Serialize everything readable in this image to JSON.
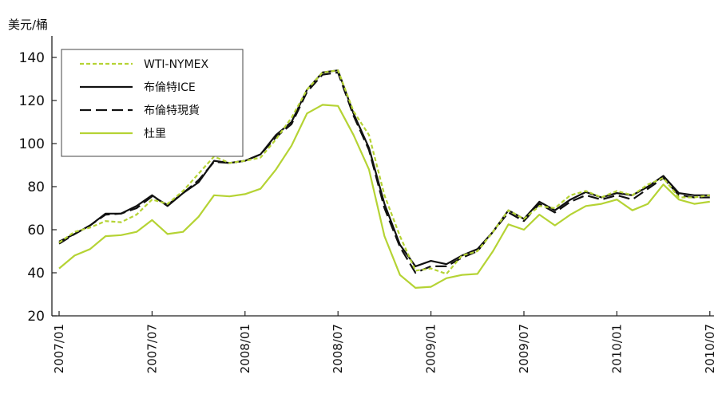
{
  "chart_data": {
    "type": "line",
    "ylabel": "美元/桶",
    "ylim": [
      20,
      150
    ],
    "yticks": [
      20,
      40,
      60,
      80,
      100,
      120,
      140
    ],
    "xtick_labels": [
      "2007/01",
      "2007/07",
      "2008/01",
      "2008/07",
      "2009/01",
      "2009/07",
      "2010/01",
      "2010/07"
    ],
    "xtick_index": [
      0,
      6,
      12,
      18,
      24,
      30,
      36,
      42
    ],
    "x": [
      "2007/01",
      "2007/02",
      "2007/03",
      "2007/04",
      "2007/05",
      "2007/06",
      "2007/07",
      "2007/08",
      "2007/09",
      "2007/10",
      "2007/11",
      "2007/12",
      "2008/01",
      "2008/02",
      "2008/03",
      "2008/04",
      "2008/05",
      "2008/06",
      "2008/07",
      "2008/08",
      "2008/09",
      "2008/10",
      "2008/11",
      "2008/12",
      "2009/01",
      "2009/02",
      "2009/03",
      "2009/04",
      "2009/05",
      "2009/06",
      "2009/07",
      "2009/08",
      "2009/09",
      "2009/10",
      "2009/11",
      "2009/12",
      "2010/01",
      "2010/02",
      "2010/03",
      "2010/04",
      "2010/05",
      "2010/06",
      "2010/07"
    ],
    "legend_position": "top-left",
    "grid": false,
    "series": [
      {
        "name": "WTI-NYMEX",
        "color": "#b5d334",
        "style": "dotted",
        "values": [
          54,
          59,
          61,
          64,
          63.5,
          67,
          74,
          72,
          78,
          86,
          94,
          91,
          92,
          93.5,
          102,
          112,
          125,
          133,
          134,
          115,
          104,
          76,
          57,
          41,
          42,
          39.5,
          48,
          50,
          59,
          69,
          65,
          71,
          70,
          76,
          78,
          75,
          78,
          76,
          81,
          84,
          75,
          75,
          76
        ]
      },
      {
        "name": "布倫特ICE",
        "color": "#111111",
        "style": "solid",
        "values": [
          54.5,
          58,
          62,
          67.5,
          67.5,
          71,
          76,
          71,
          77,
          82,
          92,
          91,
          92,
          95,
          104,
          110,
          125,
          133,
          134,
          114,
          98,
          72,
          53,
          43,
          45.5,
          44,
          48,
          51,
          59,
          69,
          65,
          73,
          69,
          74,
          77.5,
          75,
          77,
          76,
          80,
          85,
          77,
          76,
          76
        ]
      },
      {
        "name": "布倫特現貨",
        "color": "#111111",
        "style": "dashed",
        "values": [
          53.5,
          58,
          62,
          67,
          67.5,
          70,
          75.5,
          71.5,
          77,
          83,
          91.5,
          91,
          92,
          95,
          103,
          109,
          124,
          132,
          133,
          113,
          97,
          70,
          52,
          40,
          43,
          43,
          47,
          50,
          59,
          68,
          64,
          72,
          68,
          73,
          76,
          74,
          76,
          74,
          79,
          84,
          76,
          75,
          75
        ]
      },
      {
        "name": "杜里",
        "color": "#b5d334",
        "style": "solid",
        "values": [
          42,
          48,
          51,
          57,
          57.5,
          59,
          64.5,
          58,
          59,
          66,
          76,
          75.5,
          76.5,
          79,
          88,
          99,
          114,
          118,
          117.5,
          104,
          88,
          57,
          39,
          33,
          33.5,
          37.5,
          39,
          39.5,
          50,
          62.5,
          60,
          67,
          62,
          67,
          71,
          72,
          74,
          69,
          72,
          81,
          74,
          72,
          73
        ]
      }
    ]
  }
}
